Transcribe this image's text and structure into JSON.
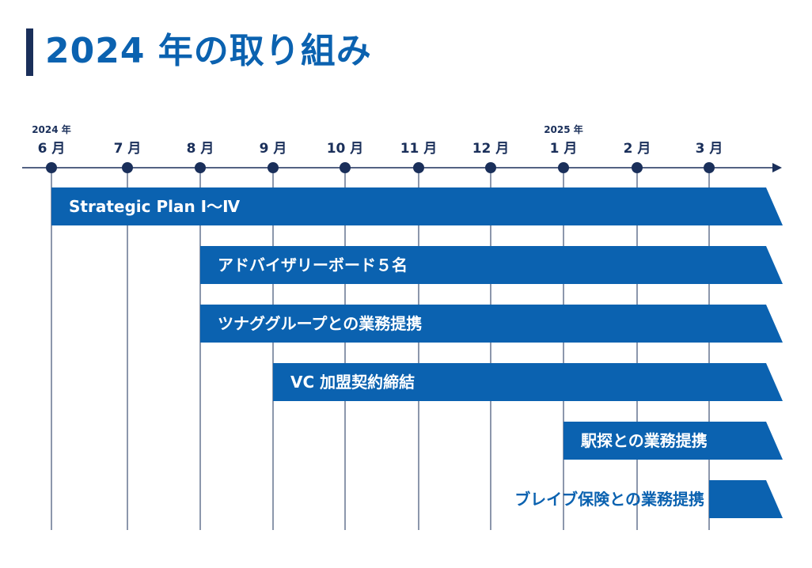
{
  "page": {
    "title": "2024 年の取り組み"
  },
  "colors": {
    "accent": "#0b62b0",
    "navy": "#1a2f5a",
    "grid": "#1a2f5a"
  },
  "timeline": {
    "months": [
      {
        "label": "6 月",
        "year": "2024 年"
      },
      {
        "label": "7 月",
        "year": ""
      },
      {
        "label": "8 月",
        "year": ""
      },
      {
        "label": "9 月",
        "year": ""
      },
      {
        "label": "10 月",
        "year": ""
      },
      {
        "label": "11 月",
        "year": ""
      },
      {
        "label": "12 月",
        "year": ""
      },
      {
        "label": "1 月",
        "year": "2025 年"
      },
      {
        "label": "2 月",
        "year": ""
      },
      {
        "label": "3 月",
        "year": ""
      }
    ],
    "initiatives": [
      {
        "label": "Strategic Plan Ⅰ～Ⅳ",
        "start_month_index": 0,
        "label_position": "inside"
      },
      {
        "label": "アドバイザリーボード５名",
        "start_month_index": 2,
        "label_position": "inside"
      },
      {
        "label": "ツナググループとの業務提携",
        "start_month_index": 2,
        "label_position": "inside"
      },
      {
        "label": "VC 加盟契約締結",
        "start_month_index": 3,
        "label_position": "inside"
      },
      {
        "label": "駅探との業務提携",
        "start_month_index": 7,
        "label_position": "inside"
      },
      {
        "label": "ブレイブ保険との業務提携",
        "start_month_index": 9,
        "label_position": "left"
      }
    ]
  }
}
